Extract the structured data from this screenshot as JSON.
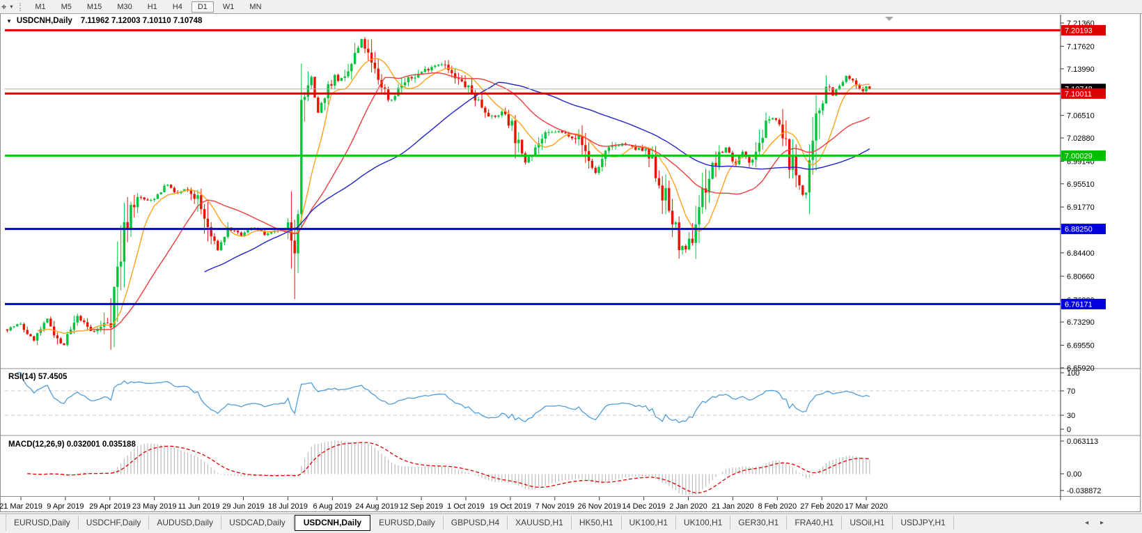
{
  "toolbar": {
    "tool_glyph": "⌖",
    "dropdown_glyph": "▾",
    "timeframes": [
      "M1",
      "M5",
      "M15",
      "M30",
      "H1",
      "H4",
      "D1",
      "W1",
      "MN"
    ],
    "active_timeframe": "D1"
  },
  "chart_window": {
    "collapse_icon": "▼",
    "title_symbol": "USDCNH,Daily",
    "title_quote": "7.11962 7.12003 7.10110 7.10748"
  },
  "price_axis": {
    "ticks": [
      "7.21360",
      "7.17620",
      "7.13990",
      "7.06510",
      "7.02880",
      "6.99140",
      "6.95510",
      "6.91770",
      "6.84400",
      "6.80660",
      "6.76820",
      "6.73290",
      "6.69550",
      "6.65920"
    ],
    "line_labels": [
      {
        "text": "7.20193",
        "price": 7.20193,
        "bg": "#DD0000"
      },
      {
        "text": "7.10748",
        "price": 7.10748,
        "bg": "#000000"
      },
      {
        "text": "7.10011",
        "price": 7.10011,
        "bg": "#DD0000"
      },
      {
        "text": "7.00029",
        "price": 7.00029,
        "bg": "#00BE00"
      },
      {
        "text": "6.88250",
        "price": 6.8825,
        "bg": "#0000DD"
      },
      {
        "text": "6.76171",
        "price": 6.76171,
        "bg": "#0000DD"
      }
    ]
  },
  "date_axis": {
    "labels": [
      "21 Mar 2019",
      "9 Apr 2019",
      "29 Apr 2019",
      "23 May 2019",
      "11 Jun 2019",
      "29 Jun 2019",
      "18 Jul 2019",
      "6 Aug 2019",
      "24 Aug 2019",
      "12 Sep 2019",
      "1 Oct 2019",
      "19 Oct 2019",
      "7 Nov 2019",
      "26 Nov 2019",
      "14 Dec 2019",
      "2 Jan 2020",
      "21 Jan 2020",
      "8 Feb 2020",
      "27 Feb 2020",
      "17 Mar 2020"
    ]
  },
  "rsi_panel": {
    "label": "RSI(14) 57.4505",
    "axis_ticks": [
      "100",
      "70",
      "30",
      "0"
    ],
    "line_color": "#4D9DDB"
  },
  "macd_panel": {
    "label": "MACD(12,26,9) 0.032001 0.035188",
    "axis_ticks": [
      "0.063113",
      "0.00",
      "-0.038872"
    ]
  },
  "tab_bar": {
    "tabs": [
      "EURUSD,Daily",
      "USDCHF,Daily",
      "AUDUSD,Daily",
      "USDCAD,Daily",
      "USDCNH,Daily",
      "EURUSD,Daily",
      "GBPUSD,H4",
      "XAUUSD,H1",
      "HK50,H1",
      "UK100,H1",
      "UK100,H1",
      "GER30,H1",
      "FRA40,H1",
      "USOil,H1",
      "USDJPY,H1"
    ],
    "active_index": 4,
    "scroll_left_icon": "◂",
    "scroll_right_icon": "▸"
  },
  "chart_data": {
    "type": "candlestick",
    "symbol": "USDCNH",
    "timeframe": "Daily",
    "current_ohlc": {
      "open": 7.11962,
      "high": 7.12003,
      "low": 7.1011,
      "close": 7.10748
    },
    "price_axis_top": 7.2259,
    "price_axis_bottom": 6.658,
    "price_tick_values": [
      7.2136,
      7.1762,
      7.1399,
      7.0651,
      7.0288,
      6.9914,
      6.9551,
      6.9177,
      6.844,
      6.8066,
      6.7682,
      6.7329,
      6.6955,
      6.6592
    ],
    "horizontal_levels": [
      {
        "price": 7.20193,
        "color": "#DD0000",
        "width": 3
      },
      {
        "price": 7.10011,
        "color": "#DD0000",
        "width": 3
      },
      {
        "price": 7.00029,
        "color": "#00CC00",
        "width": 3
      },
      {
        "price": 6.8825,
        "color": "#0000DD",
        "width": 3
      },
      {
        "price": 6.76171,
        "color": "#0000DD",
        "width": 3
      }
    ],
    "current_price_line": {
      "price": 7.10748,
      "color": "#ADADAD"
    },
    "up_color": "#00C43C",
    "down_color": "#E61400",
    "candle_count": 259,
    "close_keypoints": [
      [
        8,
        6.72
      ],
      [
        28,
        6.73
      ],
      [
        48,
        6.703
      ],
      [
        68,
        6.737
      ],
      [
        90,
        6.692
      ],
      [
        112,
        6.742
      ],
      [
        132,
        6.716
      ],
      [
        150,
        6.728
      ],
      [
        160,
        6.752
      ],
      [
        172,
        6.838
      ],
      [
        186,
        6.916
      ],
      [
        200,
        6.934
      ],
      [
        214,
        6.926
      ],
      [
        228,
        6.94
      ],
      [
        240,
        6.956
      ],
      [
        252,
        6.938
      ],
      [
        266,
        6.946
      ],
      [
        282,
        6.934
      ],
      [
        298,
        6.884
      ],
      [
        312,
        6.848
      ],
      [
        328,
        6.884
      ],
      [
        346,
        6.872
      ],
      [
        364,
        6.886
      ],
      [
        382,
        6.872
      ],
      [
        398,
        6.88
      ],
      [
        414,
        6.88
      ],
      [
        426,
        6.888
      ],
      [
        431,
        7.045
      ],
      [
        438,
        7.098
      ],
      [
        446,
        7.132
      ],
      [
        456,
        7.066
      ],
      [
        468,
        7.104
      ],
      [
        480,
        7.128
      ],
      [
        494,
        7.118
      ],
      [
        508,
        7.156
      ],
      [
        520,
        7.188
      ],
      [
        534,
        7.142
      ],
      [
        548,
        7.116
      ],
      [
        560,
        7.086
      ],
      [
        576,
        7.114
      ],
      [
        590,
        7.124
      ],
      [
        604,
        7.134
      ],
      [
        620,
        7.144
      ],
      [
        636,
        7.15
      ],
      [
        652,
        7.124
      ],
      [
        666,
        7.116
      ],
      [
        680,
        7.098
      ],
      [
        694,
        7.078
      ],
      [
        708,
        7.06
      ],
      [
        724,
        7.072
      ],
      [
        738,
        7.042
      ],
      [
        752,
        6.988
      ],
      [
        768,
        7.014
      ],
      [
        784,
        7.034
      ],
      [
        800,
        7.04
      ],
      [
        816,
        7.034
      ],
      [
        830,
        7.03
      ],
      [
        844,
        7.0
      ],
      [
        854,
        6.97
      ],
      [
        868,
        7.0
      ],
      [
        882,
        7.016
      ],
      [
        896,
        7.02
      ],
      [
        910,
        7.012
      ],
      [
        924,
        7.008
      ],
      [
        938,
        6.986
      ],
      [
        952,
        6.942
      ],
      [
        966,
        6.896
      ],
      [
        976,
        6.856
      ],
      [
        984,
        6.844
      ],
      [
        994,
        6.868
      ],
      [
        1004,
        6.922
      ],
      [
        1016,
        6.962
      ],
      [
        1030,
        6.994
      ],
      [
        1044,
        7.016
      ],
      [
        1054,
        6.984
      ],
      [
        1066,
        7.006
      ],
      [
        1078,
        6.992
      ],
      [
        1090,
        7.024
      ],
      [
        1102,
        7.052
      ],
      [
        1112,
        7.066
      ],
      [
        1122,
        7.032
      ],
      [
        1134,
        6.996
      ],
      [
        1146,
        6.96
      ],
      [
        1156,
        6.93
      ],
      [
        1166,
        6.986
      ],
      [
        1176,
        7.076
      ],
      [
        1186,
        7.12
      ],
      [
        1196,
        7.1
      ],
      [
        1206,
        7.112
      ],
      [
        1216,
        7.128
      ],
      [
        1226,
        7.118
      ],
      [
        1236,
        7.104
      ],
      [
        1246,
        7.112
      ],
      [
        1252,
        7.10748
      ]
    ],
    "moving_averages": [
      {
        "period": 10,
        "color": "#FFA11B"
      },
      {
        "period": 26,
        "color": "#F23B3B"
      },
      {
        "period": 60,
        "color": "#1F24C8"
      }
    ],
    "rsi": {
      "period": 14,
      "value": 57.4505,
      "upper_level": 70,
      "lower_level": 30
    },
    "macd": {
      "fast": 12,
      "slow": 26,
      "signal": 9,
      "value": 0.032001,
      "signal_value": 0.035188,
      "axis_max": 0.063113,
      "axis_min": -0.038872
    }
  }
}
